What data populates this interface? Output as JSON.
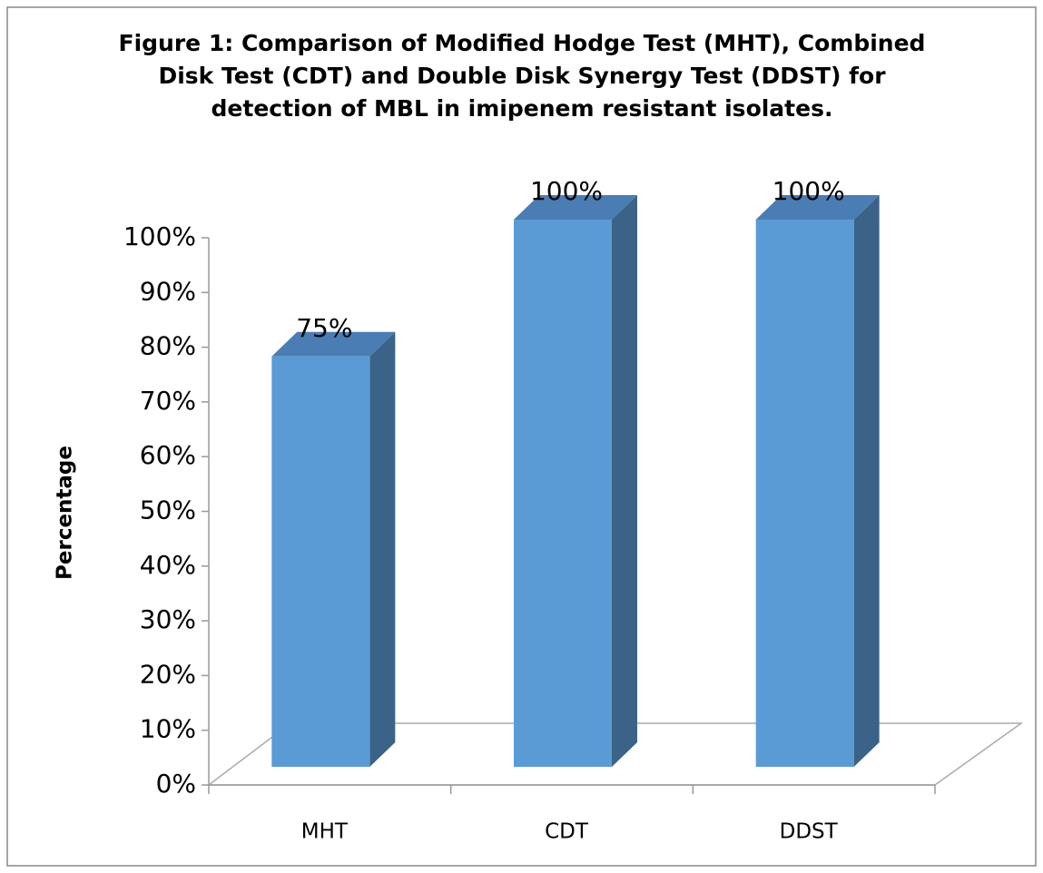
{
  "chart_data": {
    "type": "bar",
    "title": "Figure 1: Comparison of Modified Hodge Test (MHT), Combined Disk Test (CDT) and Double Disk Synergy Test (DDST) for detection of MBL in imipenem resistant isolates.",
    "y_label": "Percentage",
    "categories": [
      "MHT",
      "CDT",
      "DDST"
    ],
    "values": [
      75,
      100,
      100
    ],
    "value_labels": [
      "75%",
      "100%",
      "100%"
    ],
    "color": "#5b9bd5",
    "ylim": [
      0,
      100
    ],
    "yticks": [
      {
        "value": 0,
        "label": "0%"
      },
      {
        "value": 10,
        "label": "10%"
      },
      {
        "value": 20,
        "label": "20%"
      },
      {
        "value": 30,
        "label": "30%"
      },
      {
        "value": 40,
        "label": "40%"
      },
      {
        "value": 50,
        "label": "50%"
      },
      {
        "value": 60,
        "label": "60%"
      },
      {
        "value": 70,
        "label": "70%"
      },
      {
        "value": 80,
        "label": "80%"
      },
      {
        "value": 90,
        "label": "90%"
      },
      {
        "value": 100,
        "label": "100%"
      }
    ]
  }
}
